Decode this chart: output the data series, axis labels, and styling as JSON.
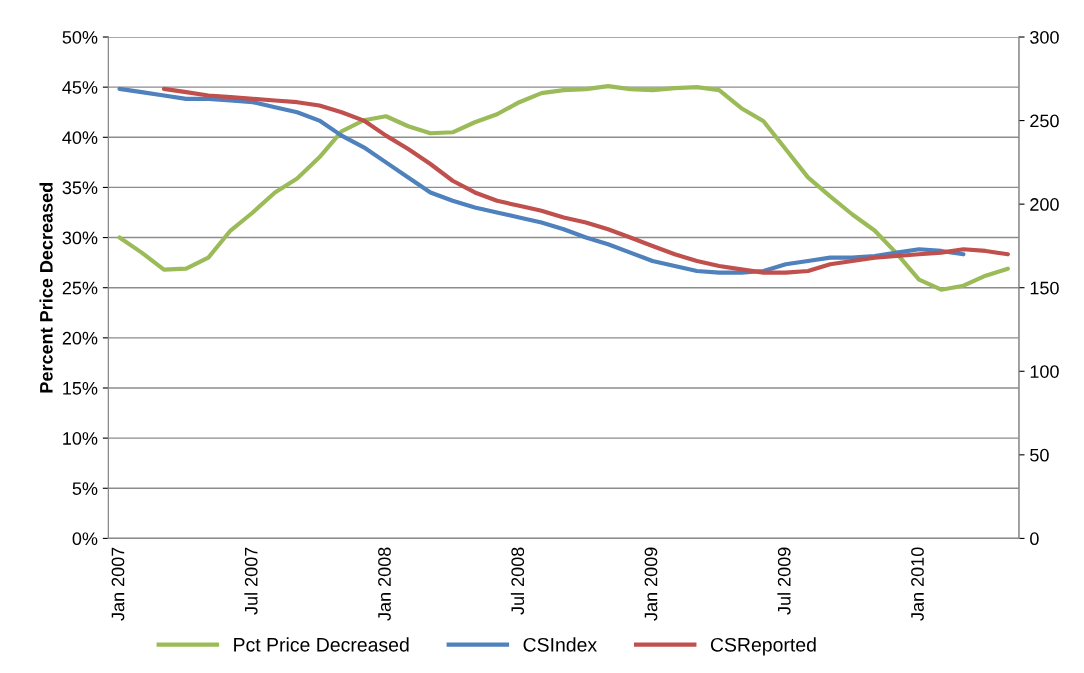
{
  "chart_data": {
    "type": "line",
    "ylabel": "Percent Price Decreased",
    "categories": [
      "Jan 2007",
      null,
      null,
      null,
      null,
      null,
      "Jul 2007",
      null,
      null,
      null,
      null,
      null,
      "Jan 2008",
      null,
      null,
      null,
      null,
      null,
      "Jul 2008",
      null,
      null,
      null,
      null,
      null,
      "Jan 2009",
      null,
      null,
      null,
      null,
      null,
      "Jul 2009",
      null,
      null,
      null,
      null,
      null,
      "Jan 2010",
      null,
      null,
      null,
      null
    ],
    "series": [
      {
        "name": "Pct Price Decreased",
        "color": "#9bbb59",
        "values": [
          30.0,
          28.5,
          26.8,
          26.9,
          28.0,
          30.7,
          32.5,
          34.5,
          35.9,
          38.0,
          40.6,
          41.7,
          42.1,
          41.1,
          40.4,
          40.5,
          41.5,
          42.3,
          43.5,
          44.4,
          44.7,
          44.8,
          45.1,
          44.8,
          44.7,
          44.9,
          45.0,
          44.7,
          42.9,
          41.6,
          38.8,
          36.0,
          34.1,
          32.3,
          30.7,
          28.4,
          25.8,
          24.8,
          25.2,
          26.2,
          26.9
        ]
      },
      {
        "name": "CSIndex",
        "color": "#4f81bd",
        "axis": "y2",
        "values": [
          269,
          267,
          265,
          263,
          263,
          262,
          261,
          258,
          255,
          250,
          241,
          234,
          225,
          216,
          207,
          202,
          198,
          195,
          192,
          189,
          185,
          180,
          176,
          171,
          166,
          163,
          160,
          159,
          159,
          160,
          164,
          166,
          168,
          168,
          169,
          171,
          173,
          172,
          170,
          null,
          null
        ]
      },
      {
        "name": "CSReported",
        "color": "#c0504d",
        "axis": "y2",
        "values": [
          null,
          null,
          269,
          267,
          265,
          264,
          263,
          262,
          261,
          259,
          255,
          250,
          241,
          233,
          224,
          214,
          207,
          202,
          199,
          196,
          192,
          189,
          185,
          180,
          175,
          170,
          166,
          163,
          161,
          159,
          159,
          160,
          164,
          166,
          168,
          169,
          170,
          171,
          173,
          172,
          170
        ]
      }
    ],
    "ylim": [
      0,
      50
    ],
    "yticks": [
      {
        "value": 0,
        "label": "0%"
      },
      {
        "value": 5,
        "label": "5%"
      },
      {
        "value": 10,
        "label": "10%"
      },
      {
        "value": 15,
        "label": "15%"
      },
      {
        "value": 20,
        "label": "20%"
      },
      {
        "value": 25,
        "label": "25%"
      },
      {
        "value": 30,
        "label": "30%"
      },
      {
        "value": 35,
        "label": "35%"
      },
      {
        "value": 40,
        "label": "40%"
      },
      {
        "value": 45,
        "label": "45%"
      },
      {
        "value": 50,
        "label": "50%"
      }
    ],
    "y2lim": [
      0,
      300
    ],
    "y2ticks": [
      0,
      50,
      100,
      150,
      200,
      250,
      300
    ],
    "grid": "y",
    "legend": "bottom",
    "marker": "none",
    "line_style": "solid"
  }
}
